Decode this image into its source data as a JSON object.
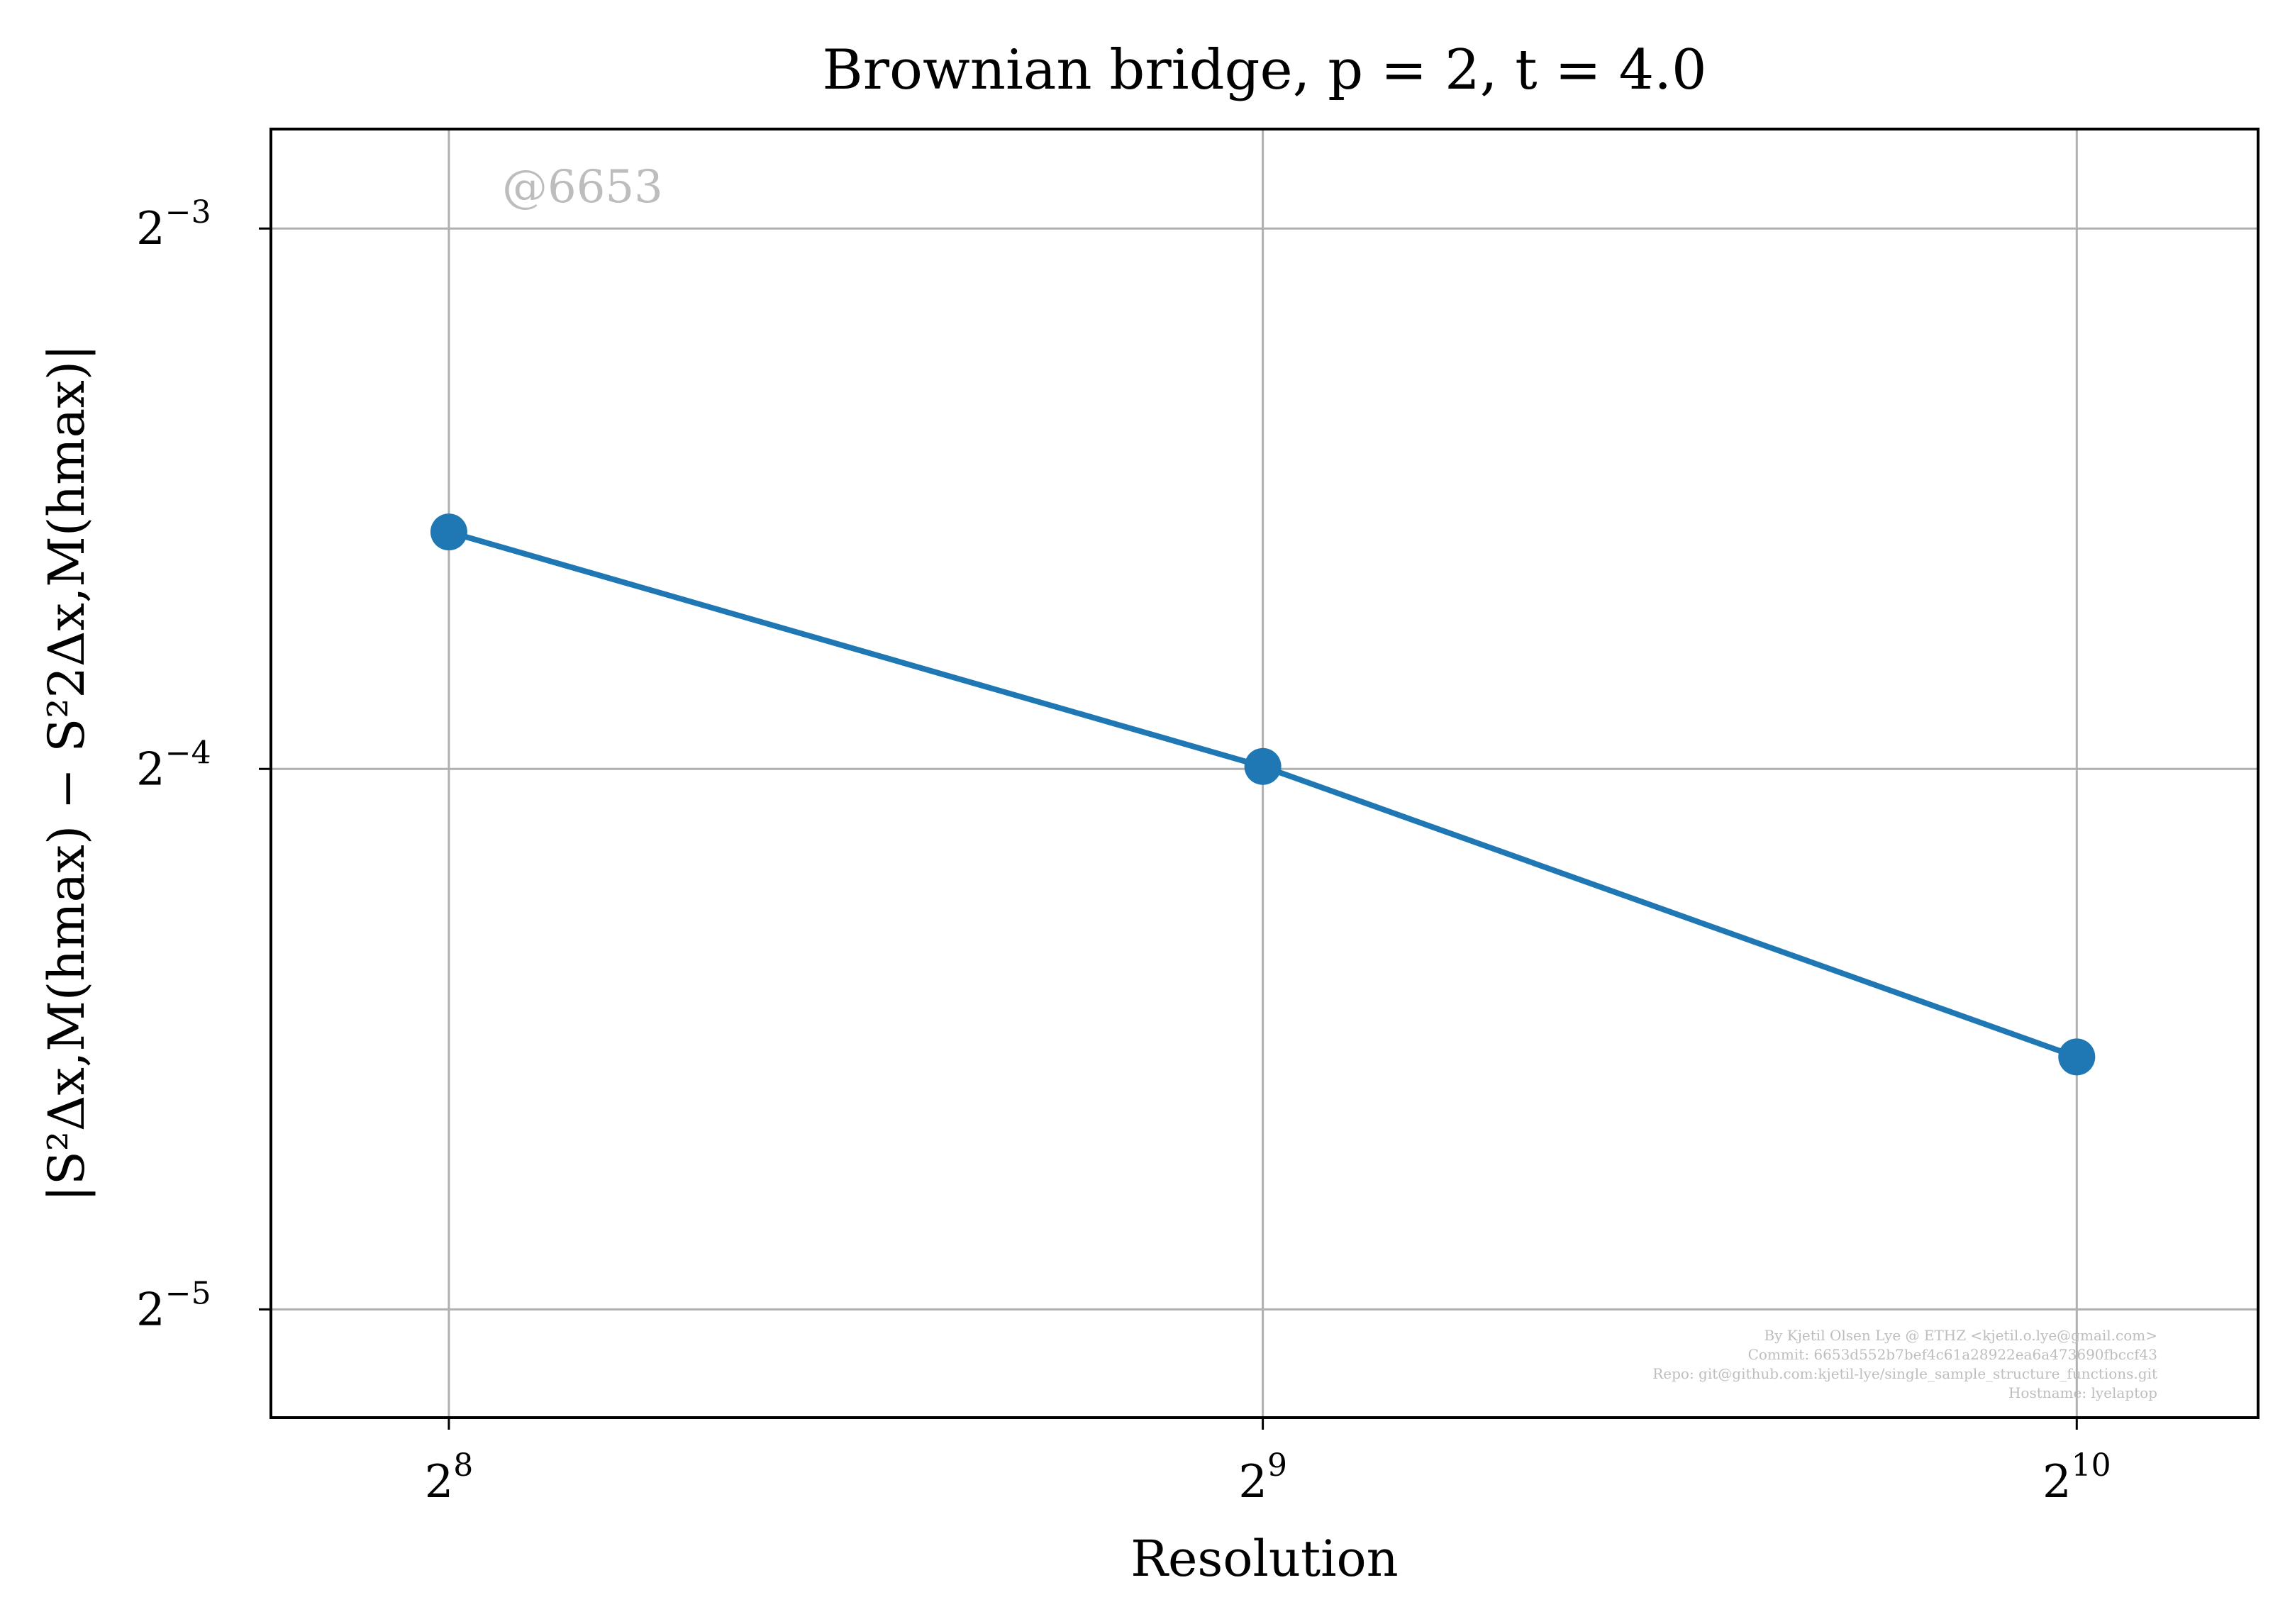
{
  "chart_data": {
    "type": "line",
    "title": "Brownian bridge, p = 2, t = 4.0",
    "xlabel": "Resolution",
    "ylabel": "|S²Δx,M(hmax) − S²2Δx,M(hmax)|",
    "x_scale": "log2",
    "y_scale": "log2",
    "x": [
      256,
      512,
      1024
    ],
    "series": [
      {
        "values": [
          0.0847,
          0.0627,
          0.0432
        ]
      }
    ],
    "xlim": [
      220,
      1195
    ],
    "ylim": [
      0.0272,
      0.142
    ],
    "x_ticks": [
      {
        "value": 256,
        "base": "2",
        "exp": "8"
      },
      {
        "value": 512,
        "base": "2",
        "exp": "9"
      },
      {
        "value": 1024,
        "base": "2",
        "exp": "10"
      }
    ],
    "y_ticks": [
      {
        "value": 0.125,
        "base": "2",
        "exp": "−3"
      },
      {
        "value": 0.0625,
        "base": "2",
        "exp": "−4"
      },
      {
        "value": 0.03125,
        "base": "2",
        "exp": "−5"
      }
    ],
    "grid": true,
    "line_color": "#1f77b4",
    "watermark": "@6653",
    "footer_lines": [
      "By Kjetil Olsen Lye @ ETHZ <kjetil.o.lye@gmail.com>",
      "Commit: 6653d552b7bef4c61a28922ea6a473690fbccf43",
      "Repo: git@github.com:kjetil-lye/single_sample_structure_functions.git",
      "Hostname: lyelaptop"
    ]
  }
}
